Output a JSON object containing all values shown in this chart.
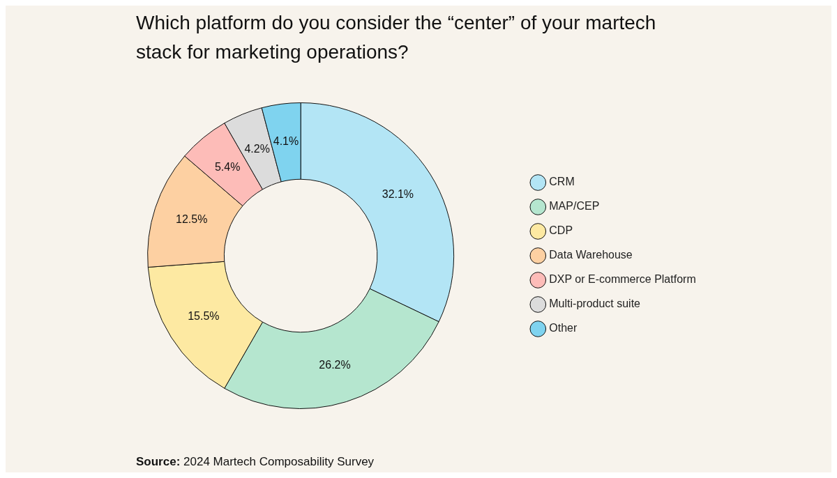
{
  "chart_data": {
    "type": "donut",
    "title": "Which platform do you consider the “center” of your martech stack for marketing operations?",
    "categories": [
      "CRM",
      "MAP/CEP",
      "CDP",
      "Data Warehouse",
      "DXP or E-commerce Platform",
      "Multi-product suite",
      "Other"
    ],
    "values": [
      32.1,
      26.2,
      15.5,
      12.5,
      5.4,
      4.2,
      4.1
    ],
    "value_labels": [
      "32.1%",
      "26.2%",
      "15.5%",
      "12.5%",
      "5.4%",
      "4.2%",
      "4.1%"
    ],
    "colors": [
      "#b3e5f5",
      "#b5e6cf",
      "#fde9a2",
      "#fdd0a2",
      "#fdbcb8",
      "#dcdcdc",
      "#7fd3ef"
    ],
    "legend": "right",
    "annotations": [
      "Source: 2024 Martech Composability Survey"
    ]
  }
}
